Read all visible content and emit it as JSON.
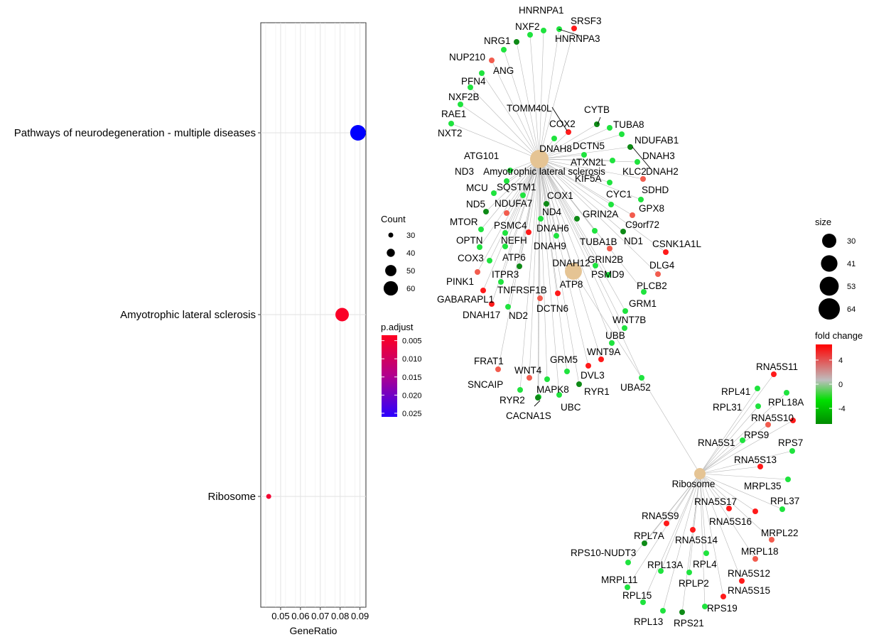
{
  "chart_data": [
    {
      "type": "scatter",
      "xlabel": "GeneRatio",
      "ylabel": "",
      "xlim": [
        0.04,
        0.093
      ],
      "x_ticks": [
        0.05,
        0.06,
        0.07,
        0.08,
        0.09
      ],
      "x_tick_labels": [
        "0.05",
        "0.06",
        "0.07",
        "0.08",
        "0.09"
      ],
      "categories": [
        "Pathways of neurodegeneration - multiple diseases",
        "Amyotrophic lateral sclerosis",
        "Ribosome"
      ],
      "points": [
        {
          "category": "Pathways of neurodegeneration - multiple diseases",
          "gene_ratio": 0.089,
          "count": 64,
          "p_adjust": 0.026
        },
        {
          "category": "Amyotrophic lateral sclerosis",
          "gene_ratio": 0.081,
          "count": 57,
          "p_adjust": 0.0042
        },
        {
          "category": "Ribosome",
          "gene_ratio": 0.044,
          "count": 30,
          "p_adjust": 0.0052
        }
      ],
      "grid": true,
      "legend_count": {
        "title": "Count",
        "values": [
          30,
          40,
          50,
          60
        ]
      },
      "legend_padjust": {
        "title": "p.adjust",
        "ticks": [
          0.005,
          0.01,
          0.015,
          0.02,
          0.025
        ],
        "tick_labels": [
          "0.005",
          "0.010",
          "0.015",
          "0.020",
          "0.025"
        ],
        "low_color": "#FF0000",
        "high_color": "#0000FF"
      }
    },
    {
      "type": "network",
      "legend_size": {
        "title": "size",
        "values": [
          30,
          41,
          53,
          64
        ]
      },
      "legend_fold": {
        "title": "fold change",
        "ticks": [
          4,
          0,
          -4
        ],
        "tick_labels": [
          "4",
          "0",
          "-4"
        ],
        "high_color": "#FF0000",
        "mid_color": "#BEBEBE",
        "low_color": "#008B00"
      },
      "hub_color": "#E5C494",
      "edge_color": "#BEBEBE",
      "hubs": [
        {
          "id": "pn",
          "label": "Pathways of neurodegeneration - multiple diseases",
          "labels": [
            "DNAH8"
          ],
          "size": 64
        },
        {
          "id": "als",
          "label": "Amyotrophic lateral sclerosis",
          "labels": [
            "DNAH12",
            "ATP8"
          ],
          "size": 57
        },
        {
          "id": "rib",
          "label": "Ribosome",
          "labels": [
            "Ribosome"
          ],
          "size": 30
        }
      ],
      "nodes": [
        {
          "label": "HNRNPA1",
          "fc": -4,
          "hubs": [
            "pn"
          ]
        },
        {
          "label": "NXF2",
          "fc": -4,
          "hubs": [
            "pn"
          ]
        },
        {
          "label": "SRSF3",
          "fc": 5,
          "hubs": [
            "pn"
          ]
        },
        {
          "label": "HNRNPA3",
          "fc": -4,
          "hubs": [
            "pn"
          ]
        },
        {
          "label": "NRG1",
          "fc": -5,
          "hubs": [
            "pn"
          ]
        },
        {
          "label": "NUP210",
          "fc": -4,
          "hubs": [
            "pn"
          ]
        },
        {
          "label": "ANG",
          "fc": 4,
          "hubs": [
            "pn"
          ]
        },
        {
          "label": "PFN4",
          "fc": -4,
          "hubs": [
            "pn"
          ]
        },
        {
          "label": "NXF2B",
          "fc": -4,
          "hubs": [
            "pn"
          ]
        },
        {
          "label": "RAE1",
          "fc": -4,
          "hubs": [
            "pn"
          ]
        },
        {
          "label": "NXT2",
          "fc": -4,
          "hubs": [
            "pn"
          ]
        },
        {
          "label": "TOMM40L",
          "fc": -4,
          "hubs": [
            "pn"
          ]
        },
        {
          "label": "COX2",
          "fc": 5,
          "hubs": [
            "pn"
          ]
        },
        {
          "label": "CYTB",
          "fc": -5,
          "hubs": [
            "pn"
          ]
        },
        {
          "label": "TUBA8",
          "fc": -4,
          "hubs": [
            "pn"
          ]
        },
        {
          "label": "NDUFAB1",
          "fc": -4,
          "hubs": [
            "pn"
          ]
        },
        {
          "label": "DCTN5",
          "fc": -4,
          "hubs": [
            "pn"
          ]
        },
        {
          "label": "DNAH3",
          "fc": -5,
          "hubs": [
            "pn"
          ]
        },
        {
          "label": "ATXN2L",
          "fc": -4,
          "hubs": [
            "pn"
          ]
        },
        {
          "label": "DNAH2",
          "fc": -4,
          "hubs": [
            "pn"
          ]
        },
        {
          "label": "ATG101",
          "fc": -4,
          "hubs": [
            "pn"
          ]
        },
        {
          "label": "ND3",
          "fc": -4,
          "hubs": [
            "pn"
          ]
        },
        {
          "label": "KLC2",
          "fc": 4,
          "hubs": [
            "pn"
          ]
        },
        {
          "label": "KIF5A",
          "fc": -4,
          "hubs": [
            "pn"
          ]
        },
        {
          "label": "MCU",
          "fc": -4,
          "hubs": [
            "pn"
          ]
        },
        {
          "label": "SQSTM1",
          "fc": -4,
          "hubs": [
            "pn"
          ]
        },
        {
          "label": "SDHD",
          "fc": -4,
          "hubs": [
            "pn"
          ]
        },
        {
          "label": "CYC1",
          "fc": -4,
          "hubs": [
            "pn"
          ]
        },
        {
          "label": "COX1",
          "fc": -5,
          "hubs": [
            "pn"
          ]
        },
        {
          "label": "ND5",
          "fc": -5,
          "hubs": [
            "pn"
          ]
        },
        {
          "label": "NDUFA7",
          "fc": 4,
          "hubs": [
            "pn"
          ]
        },
        {
          "label": "GPX8",
          "fc": 4,
          "hubs": [
            "pn"
          ]
        },
        {
          "label": "ND4",
          "fc": -4,
          "hubs": [
            "pn"
          ]
        },
        {
          "label": "GRIN2A",
          "fc": -5,
          "hubs": [
            "pn"
          ]
        },
        {
          "label": "MTOR",
          "fc": -4,
          "hubs": [
            "pn"
          ]
        },
        {
          "label": "C9orf72",
          "fc": -5,
          "hubs": [
            "pn"
          ]
        },
        {
          "label": "PSMC4",
          "fc": -4,
          "hubs": [
            "pn"
          ]
        },
        {
          "label": "DNAH6",
          "fc": 5,
          "hubs": [
            "pn"
          ]
        },
        {
          "label": "NEFH",
          "fc": -4,
          "hubs": [
            "pn"
          ]
        },
        {
          "label": "OPTN",
          "fc": -4,
          "hubs": [
            "pn"
          ]
        },
        {
          "label": "TUBA1B",
          "fc": -4,
          "hubs": [
            "pn"
          ]
        },
        {
          "label": "ND1",
          "fc": 4,
          "hubs": [
            "pn"
          ]
        },
        {
          "label": "DNAH9",
          "fc": -4,
          "hubs": [
            "pn"
          ]
        },
        {
          "label": "CSNK1A1L",
          "fc": 5,
          "hubs": [
            "pn"
          ]
        },
        {
          "label": "COX3",
          "fc": -4,
          "hubs": [
            "pn"
          ]
        },
        {
          "label": "ATP6",
          "fc": -5,
          "hubs": [
            "pn"
          ]
        },
        {
          "label": "GRIN2B",
          "fc": -4,
          "hubs": [
            "pn"
          ]
        },
        {
          "label": "DLG4",
          "fc": 4,
          "hubs": [
            "pn"
          ]
        },
        {
          "label": "PINK1",
          "fc": 4,
          "hubs": [
            "pn"
          ]
        },
        {
          "label": "ITPR3",
          "fc": -4,
          "hubs": [
            "pn"
          ]
        },
        {
          "label": "PSMD9",
          "fc": -4,
          "hubs": [
            "pn"
          ]
        },
        {
          "label": "TNFRSF1B",
          "fc": 5,
          "hubs": [
            "pn"
          ]
        },
        {
          "label": "PLCB2",
          "fc": -4,
          "hubs": [
            "pn"
          ]
        },
        {
          "label": "GABARAPL1",
          "fc": 5,
          "hubs": [
            "pn"
          ]
        },
        {
          "label": "DCTN6",
          "fc": 4,
          "hubs": [
            "pn"
          ]
        },
        {
          "label": "DNAH17",
          "fc": 5,
          "hubs": [
            "pn"
          ]
        },
        {
          "label": "ND2",
          "fc": -4,
          "hubs": [
            "pn"
          ]
        },
        {
          "label": "GRM1",
          "fc": -4,
          "hubs": [
            "pn"
          ]
        },
        {
          "label": "WNT7B",
          "fc": -4,
          "hubs": [
            "pn"
          ]
        },
        {
          "label": "UBB",
          "fc": -4,
          "hubs": [
            "pn"
          ]
        },
        {
          "label": "FRAT1",
          "fc": 4,
          "hubs": [
            "pn"
          ]
        },
        {
          "label": "WNT9A",
          "fc": 5,
          "hubs": [
            "pn"
          ]
        },
        {
          "label": "GRM5",
          "fc": -4,
          "hubs": [
            "pn"
          ]
        },
        {
          "label": "WNT4",
          "fc": 4,
          "hubs": [
            "pn"
          ]
        },
        {
          "label": "DVL3",
          "fc": 5,
          "hubs": [
            "pn"
          ]
        },
        {
          "label": "SNCAIP",
          "fc": -4,
          "hubs": [
            "pn"
          ]
        },
        {
          "label": "RYR1",
          "fc": -5,
          "hubs": [
            "pn"
          ]
        },
        {
          "label": "MAPK8",
          "fc": -4,
          "hubs": [
            "pn"
          ]
        },
        {
          "label": "RYR2",
          "fc": -4,
          "hubs": [
            "pn"
          ]
        },
        {
          "label": "UBC",
          "fc": -4,
          "hubs": [
            "pn"
          ]
        },
        {
          "label": "CACNA1S",
          "fc": -5,
          "hubs": [
            "pn"
          ]
        },
        {
          "label": "UBA52",
          "fc": -4,
          "hubs": [
            "pn"
          ]
        },
        {
          "label": "RNA5S11",
          "fc": 5,
          "hubs": [
            "rib"
          ]
        },
        {
          "label": "RPL41",
          "fc": -4,
          "hubs": [
            "rib"
          ]
        },
        {
          "label": "RPL18A",
          "fc": -4,
          "hubs": [
            "rib"
          ]
        },
        {
          "label": "RPL31",
          "fc": -4,
          "hubs": [
            "rib"
          ]
        },
        {
          "label": "RNA5S10",
          "fc": 5,
          "hubs": [
            "rib"
          ]
        },
        {
          "label": "RPS9",
          "fc": 4,
          "hubs": [
            "rib"
          ]
        },
        {
          "label": "RNA5S1",
          "fc": -4,
          "hubs": [
            "rib"
          ]
        },
        {
          "label": "RPS7",
          "fc": -4,
          "hubs": [
            "rib"
          ]
        },
        {
          "label": "RNA5S13",
          "fc": 5,
          "hubs": [
            "rib"
          ]
        },
        {
          "label": "MRPL35",
          "fc": -4,
          "hubs": [
            "rib"
          ]
        },
        {
          "label": "RPL37",
          "fc": -4,
          "hubs": [
            "rib"
          ]
        },
        {
          "label": "RNA5S17",
          "fc": 5,
          "hubs": [
            "rib"
          ]
        },
        {
          "label": "RNA5S9",
          "fc": 5,
          "hubs": [
            "rib"
          ]
        },
        {
          "label": "RNA5S16",
          "fc": 5,
          "hubs": [
            "rib"
          ]
        },
        {
          "label": "MRPL22",
          "fc": 4,
          "hubs": [
            "rib"
          ]
        },
        {
          "label": "RPL7A",
          "fc": -5,
          "hubs": [
            "rib"
          ]
        },
        {
          "label": "RNA5S14",
          "fc": 5,
          "hubs": [
            "rib"
          ]
        },
        {
          "label": "RPS10-NUDT3",
          "fc": -4,
          "hubs": [
            "rib"
          ]
        },
        {
          "label": "MRPL18",
          "fc": 4,
          "hubs": [
            "rib"
          ]
        },
        {
          "label": "RPL13A",
          "fc": -4,
          "hubs": [
            "rib"
          ]
        },
        {
          "label": "RPL4",
          "fc": -4,
          "hubs": [
            "rib"
          ]
        },
        {
          "label": "MRPL11",
          "fc": -4,
          "hubs": [
            "rib"
          ]
        },
        {
          "label": "RNA5S12",
          "fc": 5,
          "hubs": [
            "rib"
          ]
        },
        {
          "label": "RPLP2",
          "fc": -4,
          "hubs": [
            "rib"
          ]
        },
        {
          "label": "RNA5S15",
          "fc": 5,
          "hubs": [
            "rib"
          ]
        },
        {
          "label": "RPL15",
          "fc": -4,
          "hubs": [
            "rib"
          ]
        },
        {
          "label": "RPS19",
          "fc": -4,
          "hubs": [
            "rib"
          ]
        },
        {
          "label": "RPL13",
          "fc": -4,
          "hubs": [
            "rib"
          ]
        },
        {
          "label": "RPS21",
          "fc": -5,
          "hubs": [
            "rib"
          ]
        }
      ]
    }
  ]
}
